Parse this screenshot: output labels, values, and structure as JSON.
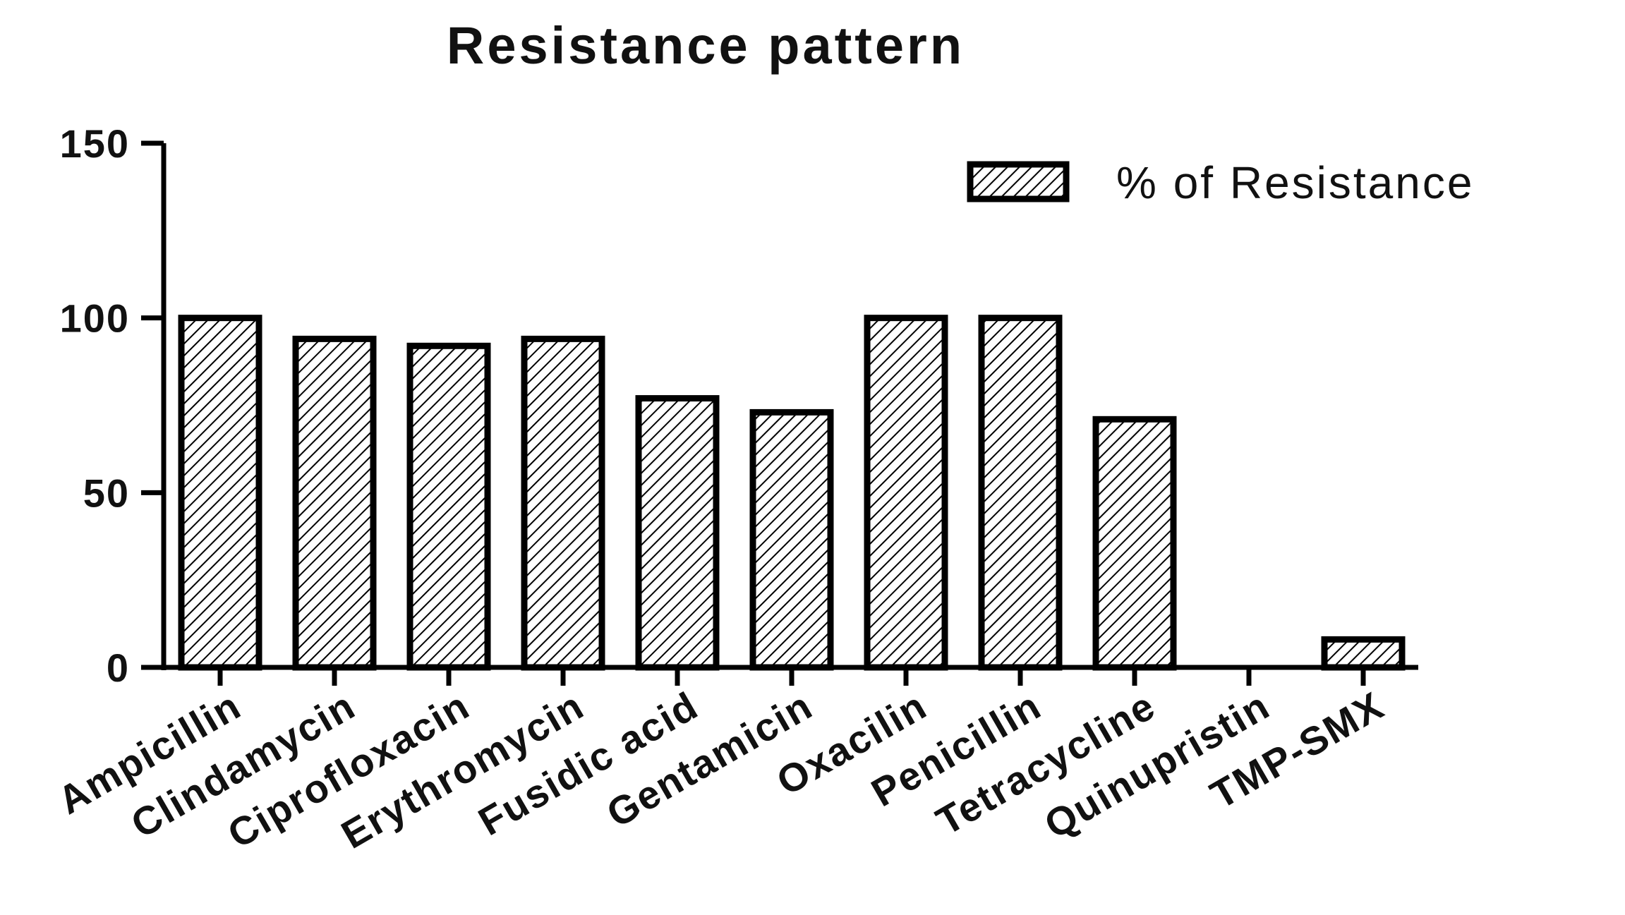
{
  "chart_data": {
    "type": "bar",
    "title": "Resistance pattern",
    "xlabel": "",
    "ylabel": "",
    "ylim": [
      0,
      150
    ],
    "yticks": [
      0,
      50,
      100,
      150
    ],
    "grid": false,
    "legend_position": "top-right",
    "categories": [
      "Ampicillin",
      "Clindamycin",
      "Ciprofloxacin",
      "Erythromycin",
      "Fusidic acid",
      "Gentamicin",
      "Oxacilin",
      "Penicillin",
      "Tetracycline",
      "Quinupristin",
      "TMP-SMX"
    ],
    "series": [
      {
        "name": "% of Resistance",
        "values": [
          100,
          94,
          92,
          94,
          77,
          73,
          100,
          100,
          71,
          0,
          8
        ],
        "fill_pattern": "diagonal-hatch",
        "stroke_color": "#000000"
      }
    ]
  }
}
